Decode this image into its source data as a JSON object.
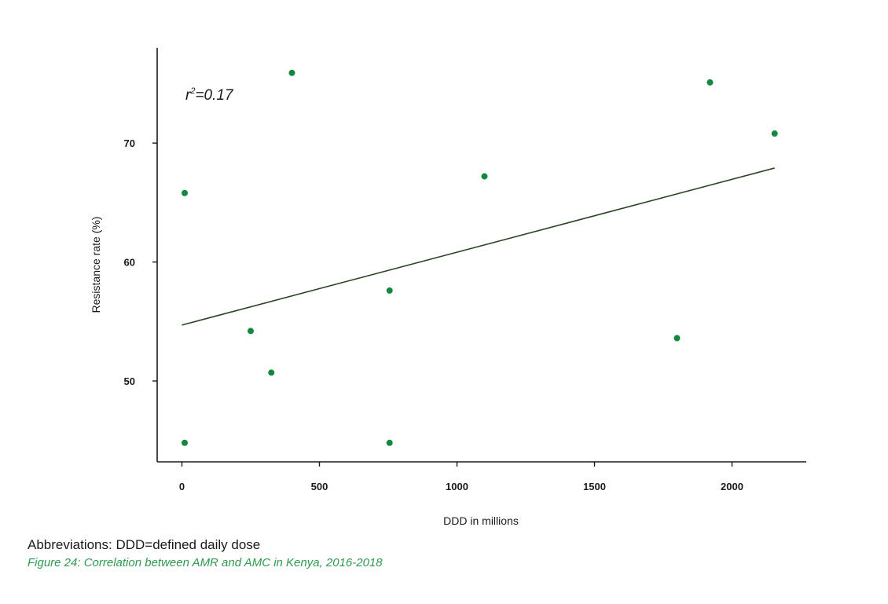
{
  "chart_data": {
    "type": "scatter",
    "xlabel": "DDD in millions",
    "ylabel": "Resistance rate (%)",
    "xlim": [
      -90,
      2270
    ],
    "ylim": [
      43.2,
      78.0
    ],
    "xticks": [
      0,
      500,
      1000,
      1500,
      2000
    ],
    "xtick_labels": [
      "0",
      "500",
      "1000",
      "1500",
      "2000"
    ],
    "yticks": [
      50,
      60,
      70
    ],
    "ytick_labels": [
      "50",
      "60",
      "70"
    ],
    "grid": false,
    "points": [
      {
        "x": 10,
        "y": 44.8
      },
      {
        "x": 10,
        "y": 65.8
      },
      {
        "x": 250,
        "y": 54.2
      },
      {
        "x": 325,
        "y": 50.7
      },
      {
        "x": 400,
        "y": 75.9
      },
      {
        "x": 755,
        "y": 57.6
      },
      {
        "x": 755,
        "y": 44.8
      },
      {
        "x": 1100,
        "y": 67.2
      },
      {
        "x": 1800,
        "y": 53.6
      },
      {
        "x": 1920,
        "y": 75.1
      },
      {
        "x": 2155,
        "y": 70.8
      }
    ],
    "trendline": {
      "x": [
        0,
        2155
      ],
      "y": [
        54.7,
        67.9
      ]
    },
    "annotation": {
      "text_prefix": "r",
      "superscript": "2",
      "text_suffix": "=0.17"
    },
    "colors": {
      "points": "#13893f",
      "trendline": "#2d4525",
      "axis": "#1a1a1a"
    }
  },
  "abbreviations": "Abbreviations: DDD=defined daily dose",
  "caption": "Figure 24: Correlation between AMR and AMC in Kenya, 2016-2018",
  "caption_color": "#2e9a4f"
}
